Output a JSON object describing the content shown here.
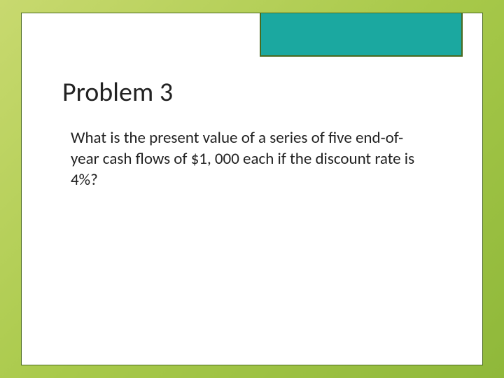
{
  "slide": {
    "title": "Problem 3",
    "body": "What is the present value of a series of five end-of-year cash flows of $1, 000 each if the discount rate is 4%?"
  },
  "style": {
    "background_gradient_start": "#c8d96f",
    "background_gradient_mid": "#a8c94a",
    "background_gradient_end": "#8fb83a",
    "frame_background": "#ffffff",
    "frame_border_color": "#4a6a1f",
    "accent_box_color": "#1ba8a0",
    "accent_box_border": "#4a6a1f",
    "title_fontsize": 38,
    "title_color": "#222222",
    "body_fontsize": 23,
    "body_color": "#222222",
    "slide_width": 720,
    "slide_height": 540
  }
}
